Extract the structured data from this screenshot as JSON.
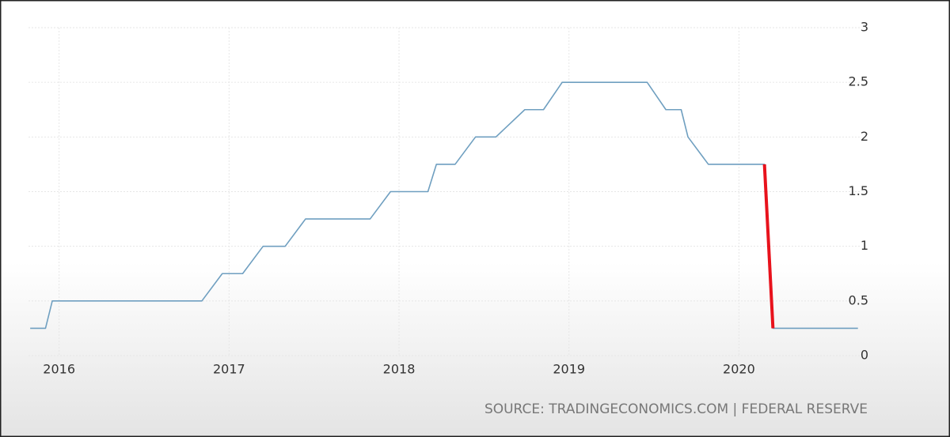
{
  "chart_data": {
    "type": "line",
    "x": [
      2015.83,
      2015.92,
      2015.96,
      2016.84,
      2016.96,
      2017.08,
      2017.2,
      2017.33,
      2017.45,
      2017.83,
      2017.95,
      2018.17,
      2018.22,
      2018.33,
      2018.45,
      2018.57,
      2018.74,
      2018.85,
      2018.96,
      2019.46,
      2019.57,
      2019.66,
      2019.7,
      2019.82,
      2020.15,
      2020.2,
      2020.7
    ],
    "series": [
      {
        "color": "#6f9fc0",
        "values": [
          0.25,
          0.25,
          0.5,
          0.5,
          0.75,
          0.75,
          1.0,
          1.0,
          1.25,
          1.25,
          1.5,
          1.5,
          1.75,
          1.75,
          2.0,
          2.0,
          2.25,
          2.25,
          2.5,
          2.5,
          2.25,
          2.25,
          2.0,
          1.75,
          1.75,
          0.25,
          0.25
        ]
      },
      {
        "color": "#e8121c",
        "values": [
          null,
          null,
          null,
          null,
          null,
          null,
          null,
          null,
          null,
          null,
          null,
          null,
          null,
          null,
          null,
          null,
          null,
          null,
          null,
          null,
          null,
          null,
          null,
          null,
          1.75,
          0.25,
          null
        ]
      }
    ],
    "xlim": [
      2015.82,
      2020.72
    ],
    "xticks": [
      2016,
      2017,
      2018,
      2019,
      2020
    ],
    "ylim": [
      0,
      3
    ],
    "yticks": [
      0,
      0.5,
      1,
      1.5,
      2,
      2.5,
      3
    ],
    "grid": true,
    "source": "SOURCE: TRADINGECONOMICS.COM | FEDERAL RESERVE"
  }
}
